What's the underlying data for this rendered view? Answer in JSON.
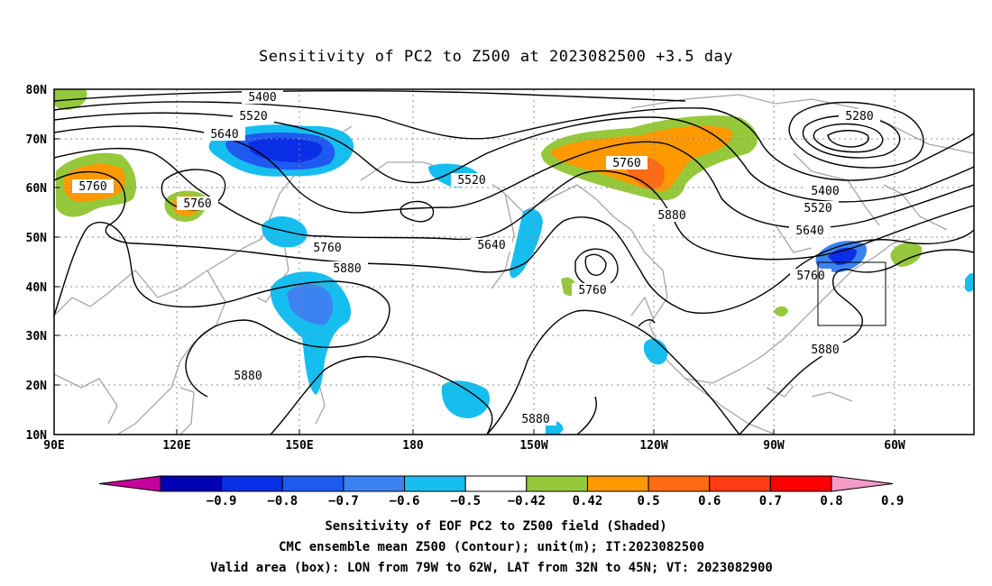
{
  "title": "Sensitivity of PC2 to Z500 at 2023082500 +3.5 day",
  "map": {
    "lat_ticks": [
      "80N",
      "70N",
      "60N",
      "50N",
      "40N",
      "30N",
      "20N",
      "10N"
    ],
    "lon_ticks": [
      "90E",
      "120E",
      "150E",
      "180",
      "150W",
      "120W",
      "90W",
      "60W"
    ],
    "gridlines": "dotted",
    "valid_box": {
      "lon_from": "79W",
      "lon_to": "62W",
      "lat_from": "32N",
      "lat_to": "45N"
    }
  },
  "contour_labels": [
    "5400",
    "5520",
    "5640",
    "5760",
    "5760",
    "5760",
    "5880",
    "5880",
    "5520",
    "5640",
    "5760",
    "5760",
    "5880",
    "5280",
    "5400",
    "5520",
    "5640",
    "5760",
    "5880",
    "5880"
  ],
  "colorbar": {
    "ticks": [
      "-0.9",
      "-0.8",
      "-0.7",
      "-0.6",
      "-0.5",
      "-0.42",
      "0.42",
      "0.5",
      "0.6",
      "0.7",
      "0.8",
      "0.9"
    ],
    "colors": [
      "#c6009b",
      "#0000b4",
      "#0a2ee6",
      "#1e5af0",
      "#3c82f0",
      "#16bef0",
      "#ffffff",
      "#96c83c",
      "#ff9900",
      "#ff6a14",
      "#ff3c14",
      "#ff0000",
      "#f59bc8"
    ]
  },
  "captions": [
    "Sensitivity of EOF PC2 to Z500 field (Shaded)",
    "CMC ensemble mean Z500 (Contour); unit(m); IT:2023082500",
    "Valid area (box): LON from 79W to 62W, LAT from 32N to 45N; VT: 2023082900"
  ]
}
